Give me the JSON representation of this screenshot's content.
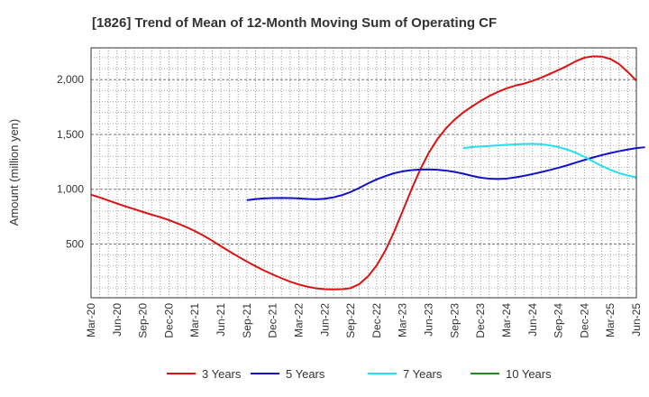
{
  "chart_data": {
    "type": "line",
    "title": "[1826]  Trend of Mean of 12-Month Moving Sum of Operating CF",
    "xlabel": "",
    "ylabel": "Amount (million yen)",
    "x_ticks": [
      "Mar-20",
      "Jun-20",
      "Sep-20",
      "Dec-20",
      "Mar-21",
      "Jun-21",
      "Sep-21",
      "Dec-21",
      "Mar-22",
      "Jun-22",
      "Sep-22",
      "Dec-22",
      "Mar-23",
      "Jun-23",
      "Sep-23",
      "Dec-23",
      "Mar-24",
      "Jun-24",
      "Sep-24",
      "Dec-24",
      "Mar-25",
      "Jun-25"
    ],
    "y_ticks": [
      500,
      1000,
      1500,
      2000
    ],
    "y_tick_labels": [
      "500",
      "1,000",
      "1,500",
      "2,000"
    ],
    "ylim": [
      10,
      2290
    ],
    "x_range_months": [
      0,
      63
    ],
    "grid": true,
    "legend_position": "bottom",
    "series": [
      {
        "name": "3 Years",
        "color": "#dd1111",
        "points": [
          [
            0,
            950
          ],
          [
            1,
            925
          ],
          [
            2,
            897
          ],
          [
            3,
            870
          ],
          [
            4,
            843
          ],
          [
            5,
            818
          ],
          [
            6,
            793
          ],
          [
            7,
            768
          ],
          [
            8,
            745
          ],
          [
            9,
            718
          ],
          [
            10,
            688
          ],
          [
            11,
            655
          ],
          [
            12,
            618
          ],
          [
            13,
            577
          ],
          [
            14,
            530
          ],
          [
            15,
            480
          ],
          [
            16,
            432
          ],
          [
            17,
            385
          ],
          [
            18,
            340
          ],
          [
            19,
            298
          ],
          [
            20,
            258
          ],
          [
            21,
            222
          ],
          [
            22,
            188
          ],
          [
            23,
            157
          ],
          [
            24,
            131
          ],
          [
            25,
            111
          ],
          [
            26,
            96
          ],
          [
            27,
            88
          ],
          [
            28,
            86
          ],
          [
            29,
            88
          ],
          [
            30,
            98
          ],
          [
            31,
            135
          ],
          [
            32,
            205
          ],
          [
            33,
            305
          ],
          [
            34,
            440
          ],
          [
            35,
            610
          ],
          [
            36,
            800
          ],
          [
            37,
            995
          ],
          [
            38,
            1175
          ],
          [
            39,
            1330
          ],
          [
            40,
            1455
          ],
          [
            41,
            1555
          ],
          [
            42,
            1635
          ],
          [
            43,
            1700
          ],
          [
            44,
            1755
          ],
          [
            45,
            1805
          ],
          [
            46,
            1850
          ],
          [
            47,
            1888
          ],
          [
            48,
            1920
          ],
          [
            49,
            1945
          ],
          [
            50,
            1963
          ],
          [
            51,
            1988
          ],
          [
            52,
            2018
          ],
          [
            53,
            2052
          ],
          [
            54,
            2088
          ],
          [
            55,
            2125
          ],
          [
            56,
            2168
          ],
          [
            57,
            2200
          ],
          [
            58,
            2213
          ],
          [
            59,
            2210
          ],
          [
            60,
            2188
          ],
          [
            61,
            2142
          ],
          [
            62,
            2070
          ],
          [
            63,
            1990
          ]
        ]
      },
      {
        "name": "5 Years",
        "color": "#1111cc",
        "points": [
          [
            18,
            900
          ],
          [
            19,
            910
          ],
          [
            20,
            916
          ],
          [
            21,
            919
          ],
          [
            22,
            921
          ],
          [
            23,
            920
          ],
          [
            24,
            916
          ],
          [
            25,
            911
          ],
          [
            26,
            908
          ],
          [
            27,
            913
          ],
          [
            28,
            926
          ],
          [
            29,
            946
          ],
          [
            30,
            975
          ],
          [
            31,
            1012
          ],
          [
            32,
            1053
          ],
          [
            33,
            1090
          ],
          [
            34,
            1120
          ],
          [
            35,
            1146
          ],
          [
            36,
            1163
          ],
          [
            37,
            1174
          ],
          [
            38,
            1180
          ],
          [
            39,
            1181
          ],
          [
            40,
            1178
          ],
          [
            41,
            1170
          ],
          [
            42,
            1158
          ],
          [
            43,
            1142
          ],
          [
            44,
            1122
          ],
          [
            45,
            1106
          ],
          [
            46,
            1096
          ],
          [
            47,
            1093
          ],
          [
            48,
            1097
          ],
          [
            49,
            1108
          ],
          [
            50,
            1122
          ],
          [
            51,
            1138
          ],
          [
            52,
            1156
          ],
          [
            53,
            1175
          ],
          [
            54,
            1196
          ],
          [
            55,
            1218
          ],
          [
            56,
            1243
          ],
          [
            57,
            1267
          ],
          [
            58,
            1290
          ],
          [
            59,
            1311
          ],
          [
            60,
            1330
          ],
          [
            61,
            1347
          ],
          [
            62,
            1362
          ],
          [
            63,
            1375
          ],
          [
            64,
            1383
          ]
        ]
      },
      {
        "name": "7 Years",
        "color": "#22e0ee",
        "points": [
          [
            43,
            1375
          ],
          [
            44,
            1385
          ],
          [
            45,
            1390
          ],
          [
            46,
            1395
          ],
          [
            47,
            1400
          ],
          [
            48,
            1405
          ],
          [
            49,
            1409
          ],
          [
            50,
            1412
          ],
          [
            51,
            1414
          ],
          [
            52,
            1410
          ],
          [
            53,
            1400
          ],
          [
            54,
            1385
          ],
          [
            55,
            1362
          ],
          [
            56,
            1333
          ],
          [
            57,
            1295
          ],
          [
            58,
            1253
          ],
          [
            59,
            1213
          ],
          [
            60,
            1177
          ],
          [
            61,
            1147
          ],
          [
            62,
            1125
          ],
          [
            63,
            1108
          ]
        ]
      },
      {
        "name": "10 Years",
        "color": "#228822",
        "points": []
      }
    ]
  }
}
